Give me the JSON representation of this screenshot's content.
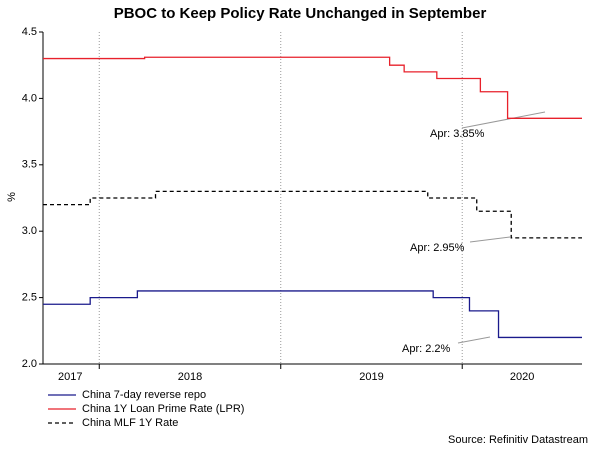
{
  "chart_data": {
    "type": "step-line",
    "title": "PBOC to Keep Policy Rate Unchanged in September",
    "y_label": "%",
    "source": "Source: Refinitiv Datastream",
    "xlim": [
      2017.69,
      2020.66
    ],
    "xticks": [
      {
        "value": 2017.84,
        "label": "2017"
      },
      {
        "value": 2018.5,
        "label": "2018"
      },
      {
        "value": 2019.5,
        "label": "2019"
      },
      {
        "value": 2020.33,
        "label": "2020"
      }
    ],
    "xgrid": [
      2018,
      2019,
      2020
    ],
    "ylim": [
      2.0,
      4.5
    ],
    "yticks": [
      {
        "value": 2.0,
        "label": "2.0"
      },
      2.5,
      {
        "value": 3.0,
        "label": "3.0"
      },
      3.5,
      {
        "value": 4.0,
        "label": "4.0"
      },
      4.5
    ],
    "series": [
      {
        "name": "China 7-day reverse repo",
        "color": "#1a1a8c",
        "dash": false,
        "x": [
          2017.69,
          2017.95,
          2018.21,
          2019.84,
          2020.04,
          2020.2,
          2020.66
        ],
        "values": [
          2.45,
          2.5,
          2.55,
          2.5,
          2.4,
          2.2,
          2.2
        ]
      },
      {
        "name": "China 1Y Loan Prime Rate (LPR)",
        "color": "#e8212b",
        "dash": false,
        "x": [
          2017.69,
          2018.25,
          2019.6,
          2019.68,
          2019.86,
          2020.1,
          2020.25,
          2020.66
        ],
        "values": [
          4.3,
          4.31,
          4.25,
          4.2,
          4.15,
          4.05,
          3.85,
          3.85
        ]
      },
      {
        "name": "China MLF 1Y Rate",
        "color": "#000000",
        "dash": true,
        "x": [
          2017.69,
          2017.95,
          2018.31,
          2019.81,
          2020.08,
          2020.27,
          2020.66
        ],
        "values": [
          3.2,
          3.25,
          3.3,
          3.25,
          3.15,
          2.95,
          2.95
        ]
      }
    ],
    "annotations": [
      "Apr: 3.85%",
      "Apr: 2.95%",
      "Apr: 2.2%"
    ]
  }
}
